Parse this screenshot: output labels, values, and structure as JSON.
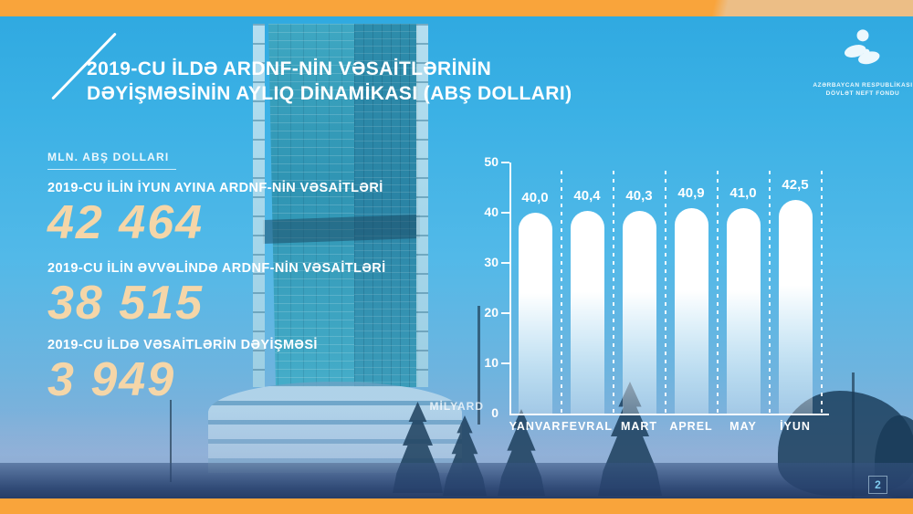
{
  "slide": {
    "page_number": "2"
  },
  "header": {
    "title_line1": "2019-CU İLDƏ ARDNF-NİN VƏSAİTLƏRİNİN",
    "title_line2": "DƏYİŞMƏSİNİN AYLIQ DİNAMİKASI (ABŞ DOLLARI)"
  },
  "logo": {
    "org_line1": "AZƏRBAYCAN RESPUBLİKASI",
    "org_line2": "DÖVLƏT NEFT FONDU"
  },
  "stats": {
    "unit_label": "MLN. ABŞ DOLLARI",
    "items": [
      {
        "label": "2019-CU İLİN İYUN AYINA ARDNF-NİN VƏSAİTLƏRİ",
        "value": "42 464"
      },
      {
        "label": "2019-CU İLİN ƏVVƏLİNDƏ ARDNF-NİN VƏSAİTLƏRİ",
        "value": "38 515"
      },
      {
        "label": "2019-CU İLDƏ VƏSAİTLƏRİN DƏYİŞMƏSİ",
        "value": "3 949"
      }
    ]
  },
  "chart_data": {
    "type": "bar",
    "title": "2019-cu ildə ARDNF-nin vəsaitlərinin dəyişməsinin aylıq dinamikası",
    "categories": [
      "YANVAR",
      "FEVRAL",
      "MART",
      "APREL",
      "MAY",
      "İYUN"
    ],
    "values": [
      40.0,
      40.4,
      40.3,
      40.9,
      41.0,
      42.5
    ],
    "value_labels": [
      "40,0",
      "40,4",
      "40,3",
      "40,9",
      "41,0",
      "42,5"
    ],
    "unit_label": "MİLYARD",
    "xlabel": "",
    "ylabel": "MİLYARD",
    "ylim": [
      0,
      50
    ],
    "yticks": [
      0,
      10,
      20,
      30,
      40,
      50
    ],
    "grid": "dashed vertical separators between bars",
    "legend": "none",
    "bar_color": "#ffffff"
  },
  "colors": {
    "accent_orange": "#f9a43b",
    "accent_orange_light": "#ecbe86",
    "background_blue": "#3bb1e5",
    "number_cream": "#f5d6a8",
    "page_number_blue": "#7fcbef",
    "text_white": "#ffffff"
  }
}
